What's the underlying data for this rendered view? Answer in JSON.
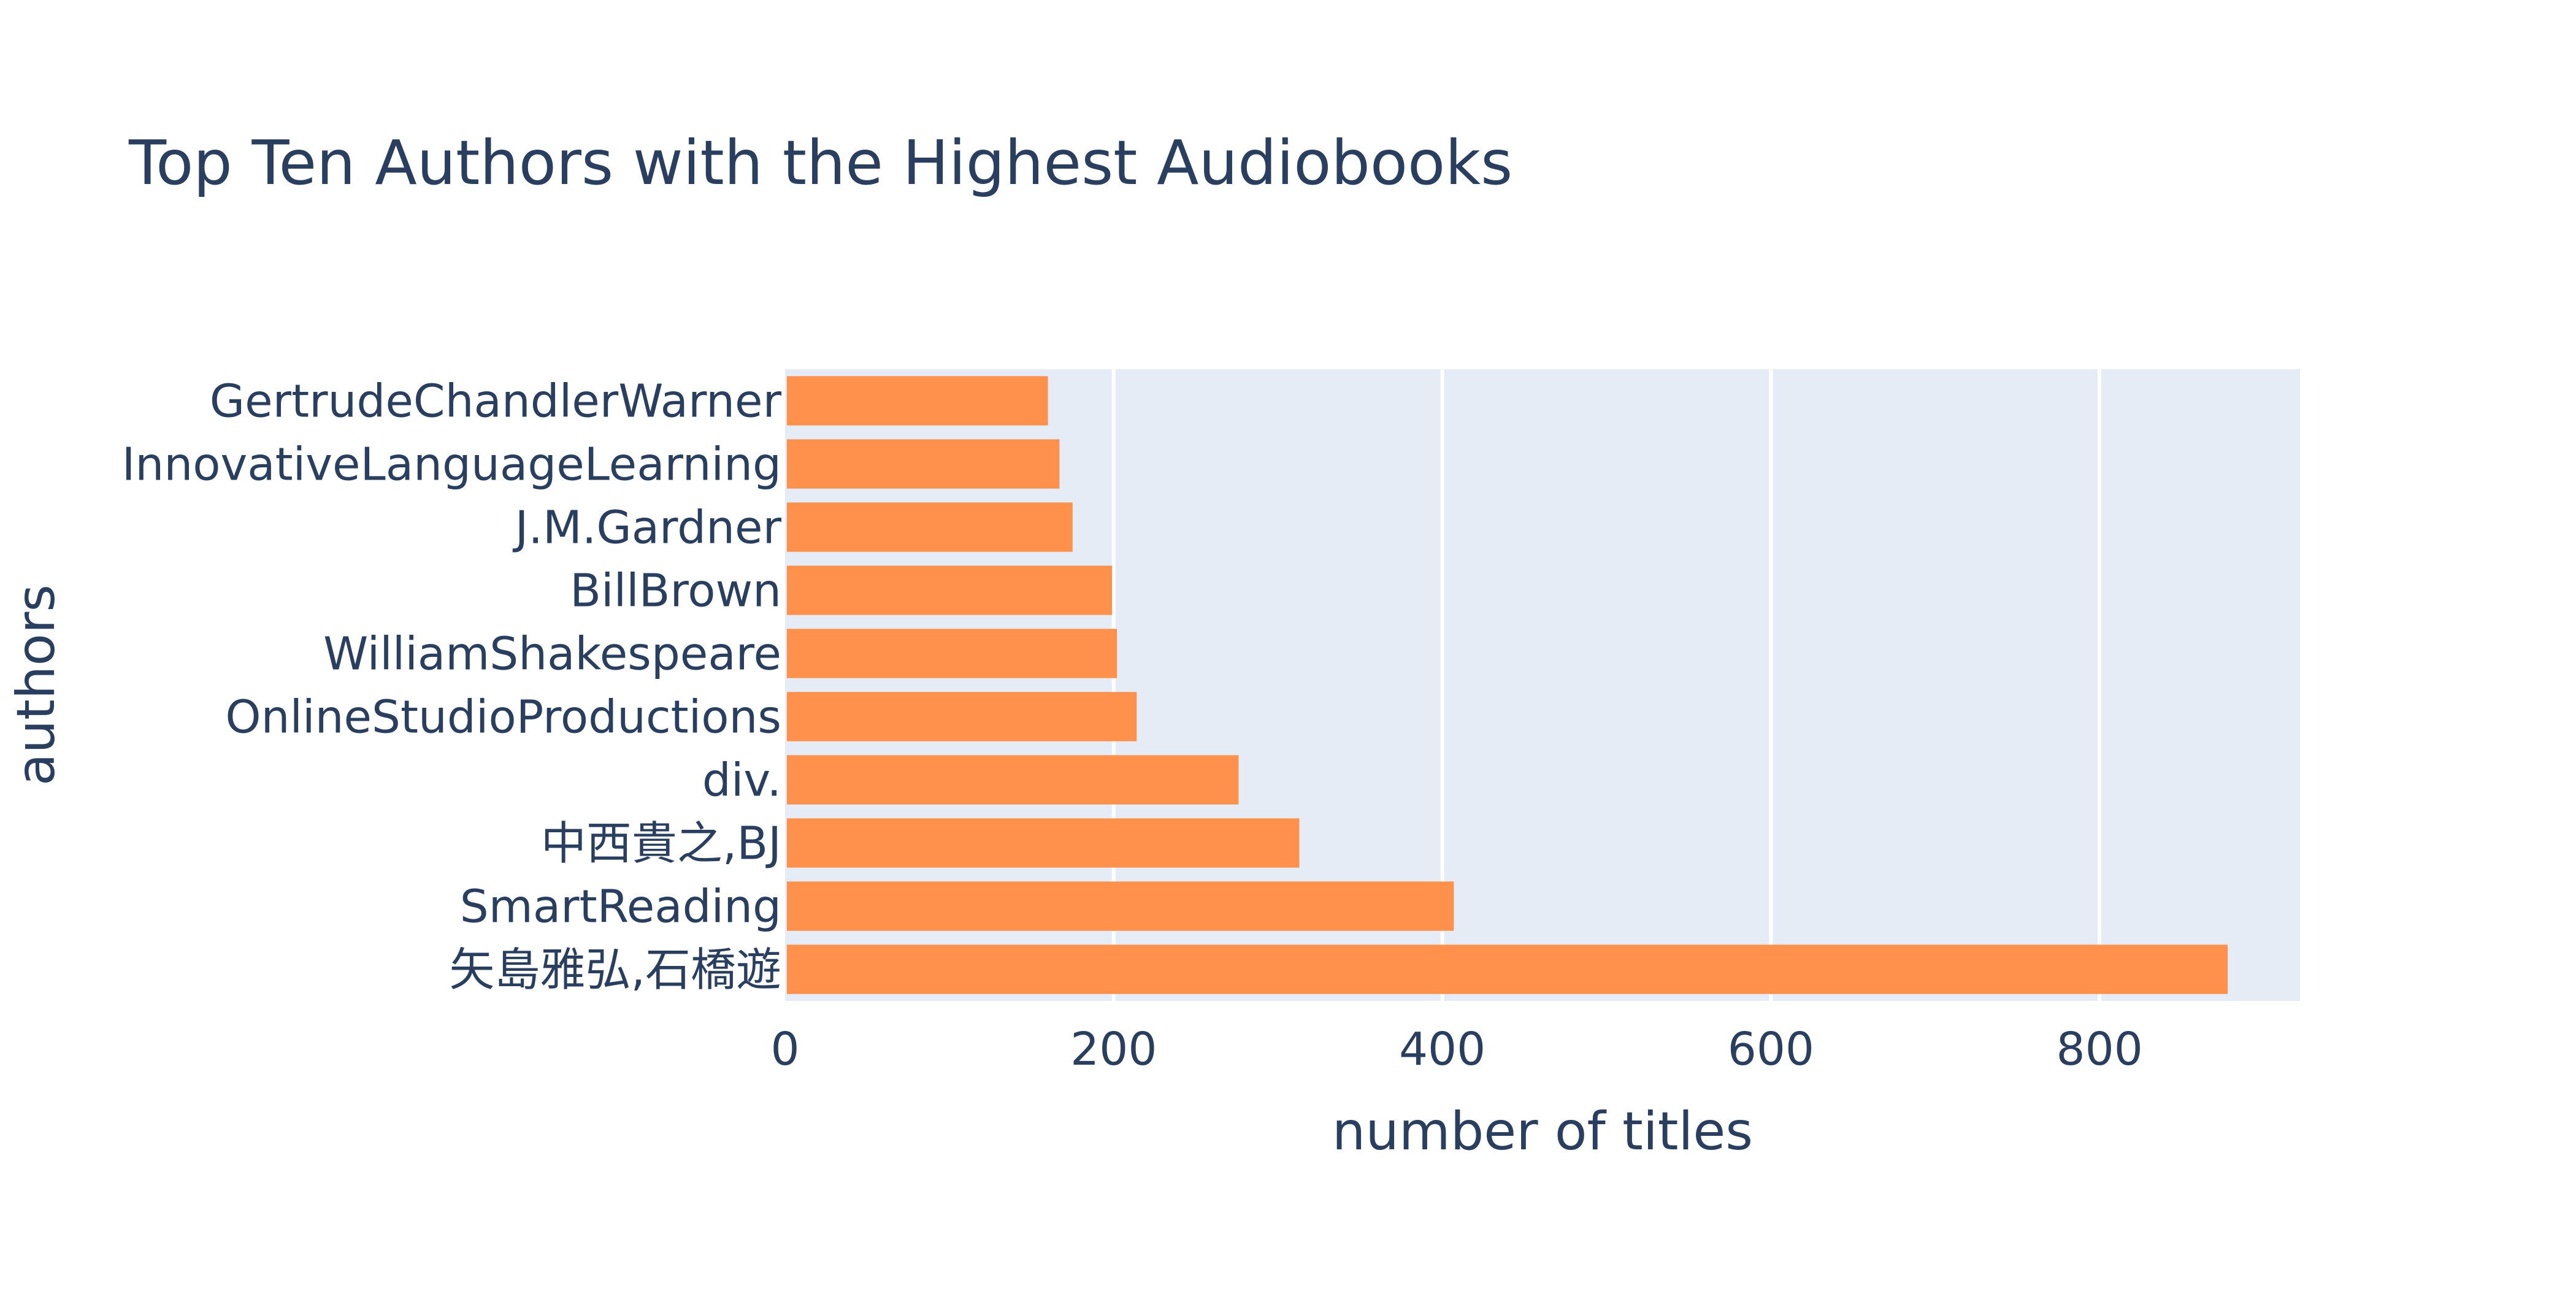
{
  "chart_data": {
    "type": "bar",
    "orientation": "horizontal",
    "title": "Top Ten Authors with the Highest Audiobooks",
    "xlabel": "number of titles",
    "ylabel": "authors",
    "categories": [
      "GertrudeChandlerWarner",
      "InnovativeLanguageLearning",
      "J.M.Gardner",
      "BillBrown",
      "WilliamShakespeare",
      "OnlineStudioProductions",
      "div.",
      "中西貴之,BJ",
      "SmartReading",
      "矢島雅弘,石橋遊"
    ],
    "values": [
      160,
      167,
      175,
      199,
      202,
      214,
      276,
      313,
      407,
      878
    ],
    "xlim": [
      0,
      922
    ],
    "xticks": [
      0,
      200,
      400,
      600,
      800
    ],
    "grid": true,
    "bar_color": "#ff914d",
    "plot_background": "#e5ecf6",
    "text_color": "#2a3f5f"
  }
}
